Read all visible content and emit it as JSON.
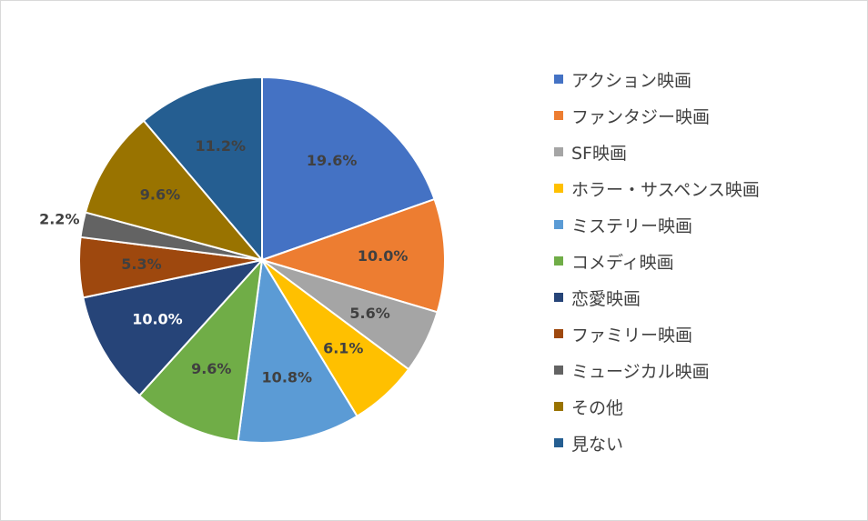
{
  "chart_data": {
    "type": "pie",
    "title": "",
    "start": "12 o'clock, clockwise",
    "legend_position": "right",
    "categories": [
      "アクション映画",
      "ファンタジー映画",
      "SF映画",
      "ホラー・サスペンス映画",
      "ミステリー映画",
      "コメディ映画",
      "恋愛映画",
      "ファミリー映画",
      "ミュージカル映画",
      "その他",
      "見ない"
    ],
    "values": [
      19.6,
      10.0,
      5.6,
      6.1,
      10.8,
      9.6,
      10.0,
      5.3,
      2.2,
      9.6,
      11.2
    ],
    "data_labels": [
      "19.6%",
      "10.0%",
      "5.6%",
      "6.1%",
      "10.8%",
      "9.6%",
      "10.0%",
      "5.3%",
      "2.2%",
      "9.6%",
      "11.2%"
    ],
    "colors": [
      "#4472C4",
      "#ED7D31",
      "#A5A5A5",
      "#FFC000",
      "#5B9BD5",
      "#70AD47",
      "#264478",
      "#9E480E",
      "#636363",
      "#997300",
      "#255E91"
    ],
    "label_colors": [
      "#404040",
      "#404040",
      "#404040",
      "#404040",
      "#404040",
      "#404040",
      "#ffffff",
      "#404040",
      "#404040",
      "#404040",
      "#404040"
    ],
    "outside_labels": [
      8
    ]
  }
}
